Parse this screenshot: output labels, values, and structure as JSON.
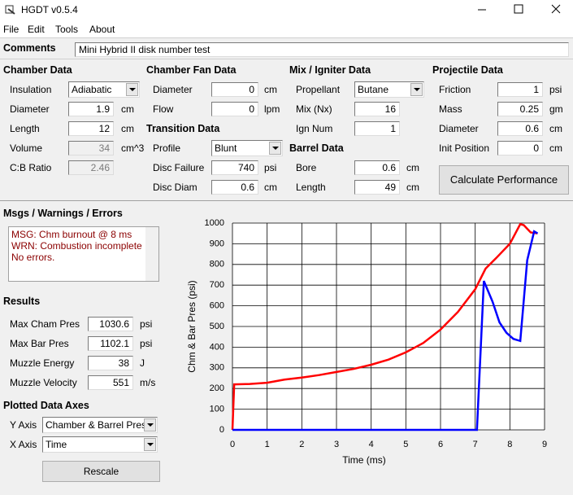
{
  "window": {
    "title": "HGDT v0.5.4"
  },
  "menu": [
    "File",
    "Edit",
    "Tools",
    "About"
  ],
  "comments": {
    "label": "Comments",
    "value": "Mini Hybrid II disk number test"
  },
  "groups": [
    {
      "title": "Chamber Data",
      "fields": [
        {
          "label": "Insulation",
          "value": "Adiabatic"
        },
        {
          "label": "Diameter",
          "value": "1.9",
          "unit": "cm"
        },
        {
          "label": "Length",
          "value": "12",
          "unit": "cm"
        },
        {
          "label": "Volume",
          "value": "34",
          "unit": "cm^3"
        },
        {
          "label": "C:B Ratio",
          "value": "2.46"
        }
      ]
    },
    {
      "title": "Chamber Fan Data",
      "fields": [
        {
          "label": "Diameter",
          "value": "0",
          "unit": "cm"
        },
        {
          "label": "Flow",
          "value": "0",
          "unit": "lpm"
        }
      ]
    },
    {
      "title": "Transition Data",
      "fields": [
        {
          "label": "Profile",
          "value": "Blunt"
        },
        {
          "label": "Disc Failure",
          "value": "740",
          "unit": "psi"
        },
        {
          "label": "Disc Diam",
          "value": "0.6",
          "unit": "cm"
        }
      ]
    },
    {
      "title": "Mix / Igniter Data",
      "fields": [
        {
          "label": "Propellant",
          "value": "Butane"
        },
        {
          "label": "Mix (Nx)",
          "value": "16"
        },
        {
          "label": "Ign Num",
          "value": "1"
        }
      ]
    },
    {
      "title": "Barrel Data",
      "fields": [
        {
          "label": "Bore",
          "value": "0.6",
          "unit": "cm"
        },
        {
          "label": "Length",
          "value": "49",
          "unit": "cm"
        }
      ]
    },
    {
      "title": "Projectile Data",
      "fields": [
        {
          "label": "Friction",
          "value": "1",
          "unit": "psi"
        },
        {
          "label": "Mass",
          "value": "0.25",
          "unit": "gm"
        },
        {
          "label": "Diameter",
          "value": "0.6",
          "unit": "cm"
        },
        {
          "label": "Init Position",
          "value": "0",
          "unit": "cm"
        }
      ]
    },
    {
      "title": "Results",
      "fields": [
        {
          "label": "Max Cham Pres",
          "value": "1030.6",
          "unit": "psi"
        },
        {
          "label": "Max Bar Pres",
          "value": "1102.1",
          "unit": "psi"
        },
        {
          "label": "Muzzle Energy",
          "value": "38",
          "unit": "J"
        },
        {
          "label": "Muzzle Velocity",
          "value": "551",
          "unit": "m/s"
        }
      ]
    },
    {
      "title": "Plotted Data Axes",
      "fields": [
        {
          "label": "Y Axis",
          "value": "Chamber & Barrel Pressure"
        },
        {
          "label": "X Axis",
          "value": "Time"
        }
      ]
    }
  ],
  "buttons": {
    "calculate": "Calculate Performance",
    "rescale": "Rescale"
  },
  "messages": {
    "title": "Msgs / Warnings / Errors",
    "lines": [
      "MSG: Chm burnout @ 8 ms",
      "WRN: Combustion incomplete",
      "No errors."
    ]
  },
  "chart_data": {
    "type": "line",
    "xlabel": "Time (ms)",
    "ylabel": "Chm & Bar Pres (psi)",
    "xlim": [
      0,
      9
    ],
    "xticks": [
      0,
      1,
      2,
      3,
      4,
      5,
      6,
      7,
      8,
      9
    ],
    "ylim": [
      0,
      1000
    ],
    "yticks": [
      0,
      100,
      200,
      300,
      400,
      500,
      600,
      700,
      800,
      900,
      1000
    ],
    "grid": true,
    "series": [
      {
        "color": "#ff0000",
        "x": [
          0,
          0.05,
          0.5,
          1,
          1.5,
          2,
          2.5,
          3,
          3.5,
          4,
          4.5,
          5,
          5.5,
          6,
          6.5,
          7,
          7.3,
          7.6,
          8,
          8.3,
          8.4,
          8.6,
          8.8
        ],
        "values": [
          0,
          220,
          222,
          228,
          243,
          253,
          265,
          280,
          295,
          315,
          340,
          375,
          420,
          485,
          570,
          680,
          780,
          830,
          900,
          995,
          990,
          955,
          950
        ]
      },
      {
        "color": "#0000ff",
        "x": [
          0,
          7.05,
          7.25,
          7.5,
          7.7,
          7.9,
          8.1,
          8.3,
          8.5,
          8.7,
          8.8
        ],
        "values": [
          0,
          0,
          720,
          620,
          520,
          470,
          440,
          430,
          820,
          960,
          950
        ]
      }
    ]
  }
}
